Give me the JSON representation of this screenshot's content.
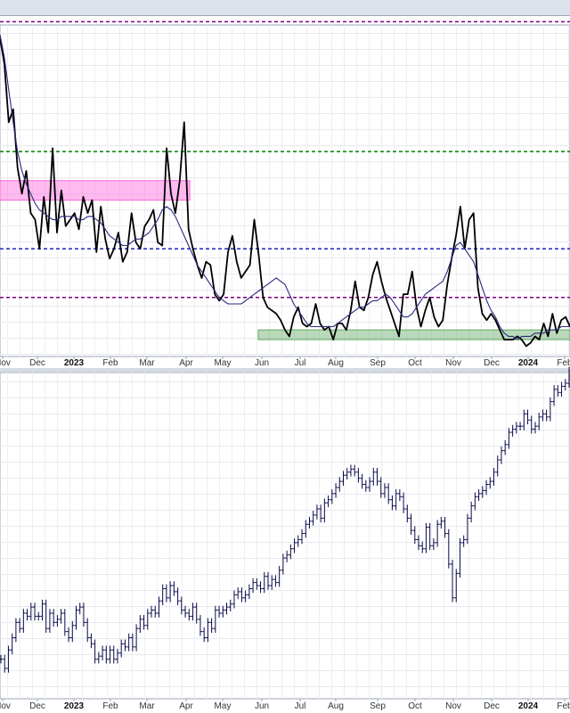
{
  "chart_data": [
    {
      "type": "line",
      "name": "upper-indicator-panel",
      "x_tick_labels": [
        "Nov",
        "Dec",
        "2023",
        "Feb",
        "Mar",
        "Apr",
        "May",
        "Jun",
        "Jul",
        "Aug",
        "Sep",
        "Oct",
        "Nov",
        "Dec",
        "2024",
        "Feb"
      ],
      "bold_tick_labels": [
        "2023",
        "2024"
      ],
      "ylim": [
        0,
        100
      ],
      "series": [
        {
          "role": "main",
          "color": "#000000",
          "values": [
            96,
            88,
            70,
            74,
            56,
            48,
            55,
            42,
            40,
            31,
            47,
            36,
            62,
            36,
            49,
            38,
            40,
            42,
            37,
            47,
            42,
            46,
            30,
            44,
            34,
            28,
            31,
            36,
            27,
            30,
            42,
            33,
            31,
            38,
            40,
            43,
            33,
            32,
            62,
            48,
            42,
            52,
            70,
            37,
            31,
            26,
            22,
            27,
            26,
            17,
            15,
            17,
            30,
            35,
            27,
            22,
            24,
            26,
            40,
            29,
            16,
            13,
            12,
            11,
            9,
            6,
            4,
            10,
            13,
            8,
            7,
            8,
            14,
            8,
            6,
            7,
            3,
            8,
            8,
            6,
            12,
            21,
            13,
            12,
            16,
            23,
            27,
            21,
            16,
            12,
            8,
            4,
            17,
            17,
            24,
            13,
            7,
            12,
            16,
            10,
            7,
            9,
            20,
            28,
            35,
            44,
            31,
            40,
            42,
            19,
            11,
            9,
            11,
            9,
            6,
            3,
            3,
            3,
            4,
            3,
            1,
            2,
            4,
            3,
            8,
            4,
            11,
            5,
            9,
            10,
            7
          ]
        },
        {
          "role": "moving-average",
          "color": "#2a2a80",
          "values": [
            97,
            90,
            80,
            70,
            61,
            55,
            51,
            48,
            45,
            43,
            42,
            41,
            40,
            40,
            41,
            41,
            41,
            41,
            40,
            40,
            41,
            41,
            40,
            39,
            37,
            35,
            34,
            33,
            32,
            32,
            33,
            34,
            34,
            35,
            36,
            38,
            40,
            43,
            44,
            43,
            41,
            38,
            35,
            32,
            29,
            26,
            24,
            22,
            20,
            18,
            16,
            15,
            14,
            14,
            14,
            14,
            15,
            16,
            17,
            18,
            19,
            20,
            21,
            22,
            21,
            20,
            17,
            14,
            12,
            10,
            8,
            7,
            7,
            7,
            7,
            7,
            7,
            8,
            9,
            10,
            11,
            12,
            13,
            13,
            14,
            15,
            15,
            16,
            17,
            16,
            14,
            12,
            10,
            10,
            11,
            13,
            15,
            17,
            18,
            19,
            20,
            21,
            24,
            28,
            32,
            33,
            31,
            29,
            27,
            23,
            19,
            15,
            12,
            10,
            7,
            5,
            4,
            4,
            3,
            4,
            4,
            4,
            5,
            5,
            5,
            6,
            6,
            6,
            7,
            7,
            7
          ]
        }
      ],
      "reference_lines": [
        {
          "value": 101,
          "color": "#800080",
          "style": "dashed"
        },
        {
          "value": 61,
          "color": "#008000",
          "style": "dashed"
        },
        {
          "value": 31,
          "color": "#2020c0",
          "style": "dashed"
        },
        {
          "value": 16,
          "color": "#800080",
          "style": "dashed"
        }
      ],
      "shaded_zones": [
        {
          "color": "#ff66dd",
          "x_from": 0,
          "x_to": 0.333,
          "y_from": 46,
          "y_to": 52
        },
        {
          "color": "#66aa66",
          "x_from": 0.453,
          "x_to": 1.0,
          "y_from": 3,
          "y_to": 6
        }
      ]
    },
    {
      "type": "ohlc",
      "name": "lower-price-panel",
      "x_tick_labels": [
        "Nov",
        "Dec",
        "2023",
        "Feb",
        "Mar",
        "Apr",
        "May",
        "Jun",
        "Jul",
        "Aug",
        "Sep",
        "Oct",
        "Nov",
        "Dec",
        "2024",
        "Feb"
      ],
      "bold_tick_labels": [
        "2023",
        "2024"
      ],
      "ylim": [
        0,
        100
      ],
      "color": "#0a0a4a",
      "values": [
        10,
        7,
        13,
        17,
        22,
        20,
        25,
        24,
        27,
        24,
        24,
        28,
        20,
        25,
        22,
        23,
        25,
        19,
        17,
        21,
        26,
        27,
        22,
        17,
        15,
        10,
        11,
        13,
        10,
        13,
        10,
        12,
        15,
        14,
        17,
        14,
        20,
        23,
        21,
        25,
        26,
        25,
        29,
        33,
        30,
        34,
        32,
        29,
        26,
        25,
        24,
        27,
        23,
        19,
        17,
        22,
        20,
        26,
        25,
        26,
        27,
        28,
        31,
        32,
        30,
        31,
        33,
        35,
        34,
        33,
        37,
        34,
        36,
        35,
        39,
        43,
        44,
        46,
        48,
        49,
        51,
        54,
        55,
        57,
        59,
        56,
        61,
        62,
        64,
        66,
        68,
        70,
        71,
        72,
        71,
        69,
        67,
        66,
        68,
        71,
        68,
        64,
        66,
        62,
        60,
        64,
        63,
        59,
        56,
        52,
        49,
        47,
        46,
        53,
        47,
        48,
        54,
        55,
        51,
        41,
        30,
        38,
        48,
        49,
        56,
        60,
        63,
        64,
        65,
        67,
        68,
        71,
        75,
        78,
        80,
        84,
        85,
        86,
        86,
        90,
        88,
        85,
        86,
        89,
        90,
        89,
        94,
        98,
        97,
        99,
        100,
        104
      ]
    }
  ]
}
